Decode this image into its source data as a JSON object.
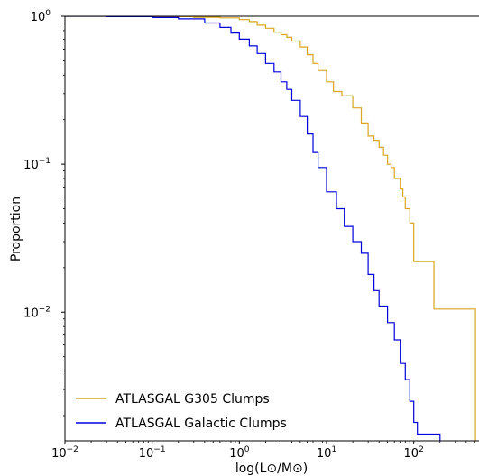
{
  "chart_data": {
    "type": "line",
    "title": "",
    "xlabel": "log(L⊙/M⊙)",
    "ylabel": "Proportion",
    "x_scale": "log",
    "y_scale": "log",
    "xlim": [
      0.01,
      560
    ],
    "ylim": [
      0.00135,
      1.0
    ],
    "x_ticks": [
      {
        "value": 0.01,
        "base": "10",
        "exp": "−2"
      },
      {
        "value": 0.1,
        "base": "10",
        "exp": "−1"
      },
      {
        "value": 1,
        "base": "10",
        "exp": "0"
      },
      {
        "value": 10,
        "base": "10",
        "exp": "1"
      },
      {
        "value": 100,
        "base": "10",
        "exp": "2"
      }
    ],
    "y_ticks": [
      {
        "value": 1,
        "base": "10",
        "exp": "0"
      },
      {
        "value": 0.1,
        "base": "10",
        "exp": "−1"
      },
      {
        "value": 0.01,
        "base": "10",
        "exp": "−2"
      }
    ],
    "legend_position": "lower-left",
    "series": [
      {
        "name": "ATLASGAL G305 Clumps",
        "color": "#DAA520",
        "x": [
          0.01,
          0.1,
          0.3,
          0.6,
          1.0,
          1.3,
          1.6,
          2.0,
          2.5,
          3.0,
          3.5,
          4.0,
          5.0,
          6.0,
          7.0,
          8.0,
          10,
          12,
          15,
          20,
          25,
          30,
          35,
          40,
          45,
          50,
          55,
          60,
          70,
          75,
          80,
          90,
          100,
          160,
          170,
          500,
          510,
          511
        ],
        "y": [
          1.0,
          0.995,
          0.985,
          0.975,
          0.95,
          0.92,
          0.87,
          0.83,
          0.78,
          0.75,
          0.72,
          0.68,
          0.62,
          0.55,
          0.48,
          0.43,
          0.36,
          0.31,
          0.29,
          0.24,
          0.19,
          0.155,
          0.145,
          0.13,
          0.115,
          0.1,
          0.095,
          0.08,
          0.068,
          0.06,
          0.05,
          0.04,
          0.022,
          0.022,
          0.0105,
          0.0105,
          0.0013,
          0.0013
        ]
      },
      {
        "name": "ATLASGAL Galactic Clumps",
        "color": "#0000DD",
        "x": [
          0.01,
          0.03,
          0.1,
          0.2,
          0.4,
          0.6,
          0.8,
          1.0,
          1.3,
          1.6,
          2.0,
          2.5,
          3.0,
          3.5,
          4.0,
          5.0,
          6.0,
          7.0,
          8.0,
          10,
          13,
          16,
          20,
          25,
          30,
          35,
          40,
          50,
          60,
          70,
          80,
          90,
          100,
          110,
          130,
          150,
          180,
          200,
          201
        ],
        "y": [
          1.0,
          0.995,
          0.98,
          0.96,
          0.9,
          0.84,
          0.77,
          0.7,
          0.63,
          0.56,
          0.48,
          0.42,
          0.36,
          0.32,
          0.27,
          0.21,
          0.16,
          0.12,
          0.095,
          0.065,
          0.05,
          0.038,
          0.03,
          0.025,
          0.018,
          0.014,
          0.011,
          0.0085,
          0.0065,
          0.0045,
          0.0035,
          0.0025,
          0.0018,
          0.0015,
          0.0015,
          0.0015,
          0.0015,
          0.0013,
          0.0013
        ]
      }
    ]
  }
}
